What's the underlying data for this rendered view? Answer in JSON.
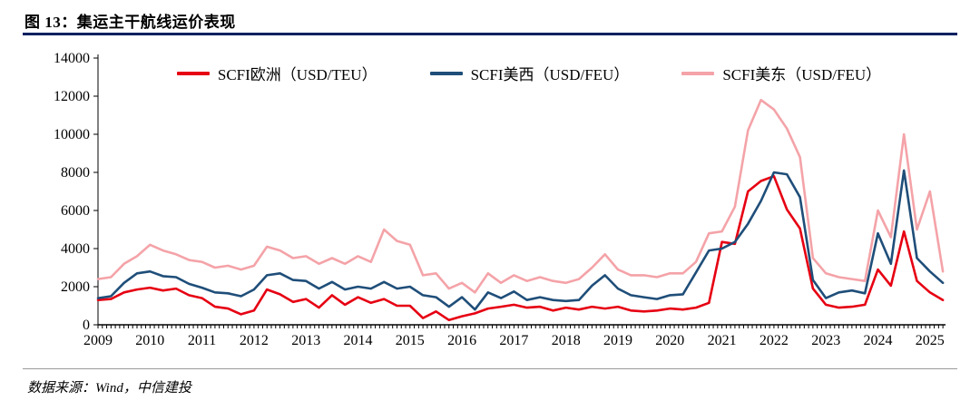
{
  "header": {
    "figure_label_title": "图 13：集运主干航线运价表现"
  },
  "footer": {
    "source": "数据来源：Wind，中信建投"
  },
  "colors": {
    "header_rule": "#002060",
    "europe_line": "#e60012",
    "uswest_line": "#1f4e79",
    "useast_line": "#f4a3a8",
    "axis": "#000000"
  },
  "chart_data": {
    "type": "line",
    "title": "图 13：集运主干航线运价表现",
    "xlabel": "",
    "ylabel": "",
    "grid": false,
    "legend_position": "top",
    "ylim": [
      0,
      14000
    ],
    "ytick_step": 2000,
    "yticks": [
      0,
      2000,
      4000,
      6000,
      8000,
      10000,
      12000,
      14000
    ],
    "xticks": [
      2009,
      2010,
      2011,
      2012,
      2013,
      2014,
      2015,
      2016,
      2017,
      2018,
      2019,
      2020,
      2021,
      2022,
      2023,
      2024,
      2025
    ],
    "x": [
      2009,
      2009.25,
      2009.5,
      2009.75,
      2010,
      2010.25,
      2010.5,
      2010.75,
      2011,
      2011.25,
      2011.5,
      2011.75,
      2012,
      2012.25,
      2012.5,
      2012.75,
      2013,
      2013.25,
      2013.5,
      2013.75,
      2014,
      2014.25,
      2014.5,
      2014.75,
      2015,
      2015.25,
      2015.5,
      2015.75,
      2016,
      2016.25,
      2016.5,
      2016.75,
      2017,
      2017.25,
      2017.5,
      2017.75,
      2018,
      2018.25,
      2018.5,
      2018.75,
      2019,
      2019.25,
      2019.5,
      2019.75,
      2020,
      2020.25,
      2020.5,
      2020.75,
      2021,
      2021.25,
      2021.5,
      2021.75,
      2022,
      2022.25,
      2022.5,
      2022.75,
      2023,
      2023.25,
      2023.5,
      2023.75,
      2024,
      2024.25,
      2024.5,
      2024.75,
      2025,
      2025.25
    ],
    "series": [
      {
        "name": "SCFI欧洲（USD/TEU）",
        "color": "#e60012",
        "values": [
          1300,
          1350,
          1700,
          1850,
          1950,
          1800,
          1900,
          1550,
          1400,
          950,
          850,
          550,
          750,
          1850,
          1600,
          1200,
          1350,
          900,
          1550,
          1050,
          1450,
          1150,
          1350,
          1000,
          1000,
          350,
          700,
          250,
          450,
          600,
          850,
          950,
          1050,
          900,
          950,
          750,
          900,
          800,
          950,
          850,
          950,
          750,
          700,
          750,
          850,
          800,
          900,
          1150,
          4350,
          4250,
          7000,
          7550,
          7800,
          6050,
          5050,
          1900,
          1050,
          900,
          950,
          1050,
          2900,
          2050,
          4900,
          2300,
          1700,
          1300
        ]
      },
      {
        "name": "SCFI美西（USD/FEU）",
        "color": "#1f4e79",
        "values": [
          1400,
          1500,
          2200,
          2700,
          2800,
          2550,
          2500,
          2150,
          1950,
          1700,
          1650,
          1500,
          1850,
          2600,
          2700,
          2350,
          2300,
          1900,
          2250,
          1850,
          2000,
          1900,
          2250,
          1900,
          2000,
          1550,
          1450,
          950,
          1450,
          800,
          1700,
          1400,
          1750,
          1300,
          1450,
          1300,
          1250,
          1300,
          2050,
          2600,
          1900,
          1550,
          1450,
          1350,
          1550,
          1600,
          2750,
          3900,
          4000,
          4350,
          5300,
          6500,
          8000,
          7900,
          6700,
          2350,
          1400,
          1700,
          1800,
          1650,
          4800,
          3200,
          8100,
          3500,
          2800,
          2200
        ]
      },
      {
        "name": "SCFI美东（USD/FEU）",
        "color": "#f4a3a8",
        "values": [
          2400,
          2500,
          3200,
          3600,
          4200,
          3900,
          3700,
          3400,
          3300,
          3000,
          3100,
          2900,
          3100,
          4100,
          3900,
          3500,
          3600,
          3200,
          3500,
          3200,
          3600,
          3300,
          5000,
          4400,
          4200,
          2600,
          2700,
          1900,
          2200,
          1700,
          2700,
          2200,
          2600,
          2300,
          2500,
          2300,
          2200,
          2400,
          3000,
          3700,
          2900,
          2600,
          2600,
          2500,
          2700,
          2700,
          3300,
          4800,
          4900,
          6200,
          10200,
          11800,
          11300,
          10300,
          8800,
          3500,
          2700,
          2500,
          2400,
          2300,
          6000,
          4600,
          10000,
          5000,
          7000,
          2800
        ]
      }
    ]
  }
}
